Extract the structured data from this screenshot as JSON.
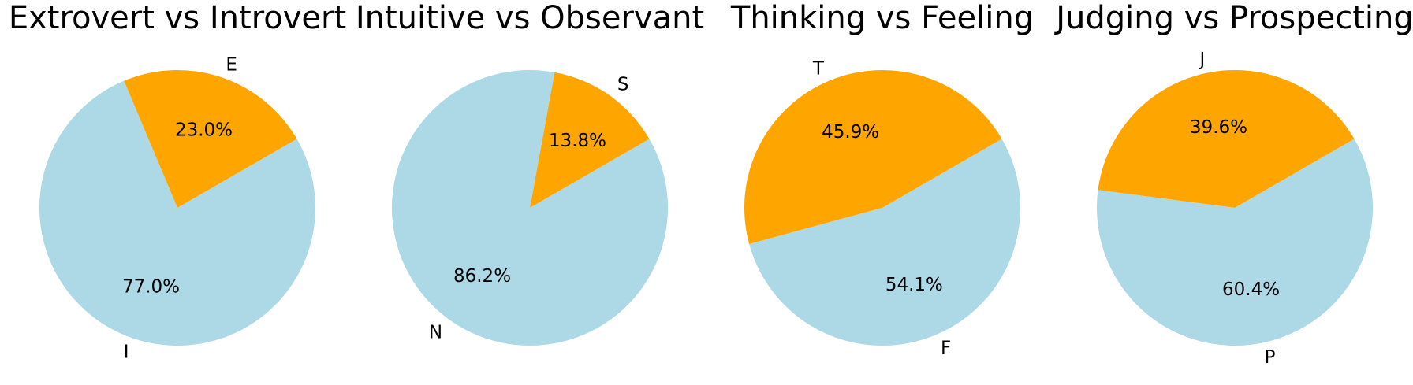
{
  "colors": {
    "first": "#ADD8E6",
    "second": "#FFA500"
  },
  "chart_data": [
    {
      "type": "pie",
      "title": "Extrovert vs Introvert",
      "slices": [
        {
          "label": "E",
          "value": 23.0,
          "pct_label": "23.0%",
          "color": "#FFA500"
        },
        {
          "label": "I",
          "value": 77.0,
          "pct_label": "77.0%",
          "color": "#ADD8E6"
        }
      ]
    },
    {
      "type": "pie",
      "title": "Intuitive vs Observant",
      "slices": [
        {
          "label": "S",
          "value": 13.8,
          "pct_label": "13.8%",
          "color": "#FFA500"
        },
        {
          "label": "N",
          "value": 86.2,
          "pct_label": "86.2%",
          "color": "#ADD8E6"
        }
      ]
    },
    {
      "type": "pie",
      "title": "Thinking vs Feeling",
      "slices": [
        {
          "label": "T",
          "value": 45.9,
          "pct_label": "45.9%",
          "color": "#FFA500"
        },
        {
          "label": "F",
          "value": 54.1,
          "pct_label": "54.1%",
          "color": "#ADD8E6"
        }
      ]
    },
    {
      "type": "pie",
      "title": "Judging vs Prospecting",
      "slices": [
        {
          "label": "J",
          "value": 39.6,
          "pct_label": "39.6%",
          "color": "#FFA500"
        },
        {
          "label": "P",
          "value": 60.4,
          "pct_label": "60.4%",
          "color": "#ADD8E6"
        }
      ]
    }
  ]
}
